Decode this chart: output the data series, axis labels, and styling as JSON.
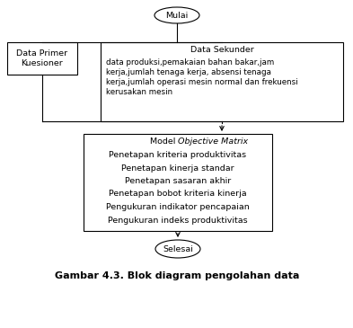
{
  "title": "Gambar 4.3. Blok diagram pengolahan data",
  "mulai_text": "Mulai",
  "selesai_text": "Selesai",
  "data_primer_text": "Data Primer\nKuesioner",
  "data_sekunder_title": "Data Sekunder",
  "data_sekunder_body": "data produksi,pemakaian bahan bakar,jam\nkerja,jumlah tenaga kerja, absensi tenaga\nkerja,jumlah operasi mesin normal dan frekuensi\nkerusakan mesin",
  "model_lines": [
    "Penetapan kriteria produktivitas",
    "Penetapan kinerja standar",
    "Penetapan sasaran akhir",
    "Penetapan bobot kriteria kinerja",
    "Pengukuran indikator pencapaian",
    "Pengukuran indeks produktivitas"
  ],
  "bg_color": "#ffffff",
  "box_color": "#ffffff",
  "edge_color": "#000000",
  "text_color": "#000000",
  "fontsize_small": 6.8,
  "fontsize_caption": 8.0,
  "lw": 0.8
}
